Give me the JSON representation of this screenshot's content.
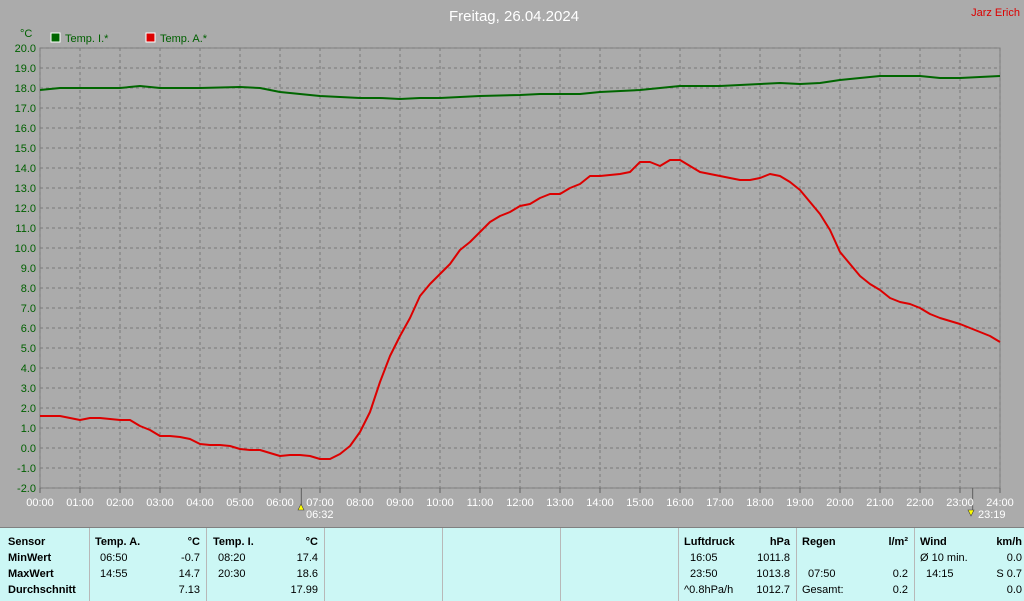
{
  "title": "Freitag, 26.04.2024",
  "author": "Jarz Erich",
  "unit_label": "°C",
  "legend": [
    {
      "label": "Temp. I.*",
      "color": "#006600"
    },
    {
      "label": "Temp. A.*",
      "color": "#dd0000"
    }
  ],
  "sun": {
    "rise": "06:32",
    "set": "23:19"
  },
  "chart_data": {
    "type": "line",
    "title": "Freitag, 26.04.2024",
    "ylabel": "°C",
    "xlabel": "",
    "ylim": [
      -2.0,
      20.0
    ],
    "xlim": [
      0,
      24
    ],
    "grid": true,
    "legend_position": "top-left",
    "x_ticks": [
      "00:00",
      "01:00",
      "02:00",
      "03:00",
      "04:00",
      "05:00",
      "06:00",
      "07:00",
      "08:00",
      "09:00",
      "10:00",
      "11:00",
      "12:00",
      "13:00",
      "14:00",
      "15:00",
      "16:00",
      "17:00",
      "18:00",
      "19:00",
      "20:00",
      "21:00",
      "22:00",
      "23:00",
      "24:00"
    ],
    "y_ticks": [
      "-2.0",
      "-1.0",
      "0.0",
      "1.0",
      "2.0",
      "3.0",
      "4.0",
      "5.0",
      "6.0",
      "7.0",
      "8.0",
      "9.0",
      "10.0",
      "11.0",
      "12.0",
      "13.0",
      "14.0",
      "15.0",
      "16.0",
      "17.0",
      "18.0",
      "19.0",
      "20.0"
    ],
    "series": [
      {
        "name": "Temp. I.*",
        "color": "#006600",
        "points": [
          [
            0,
            17.9
          ],
          [
            0.5,
            18.0
          ],
          [
            1,
            18.0
          ],
          [
            2,
            18.0
          ],
          [
            2.5,
            18.1
          ],
          [
            3,
            18.0
          ],
          [
            4,
            18.0
          ],
          [
            5,
            18.05
          ],
          [
            5.5,
            18.0
          ],
          [
            6,
            17.8
          ],
          [
            6.5,
            17.7
          ],
          [
            7,
            17.6
          ],
          [
            7.5,
            17.55
          ],
          [
            8,
            17.5
          ],
          [
            8.5,
            17.5
          ],
          [
            9,
            17.45
          ],
          [
            9.5,
            17.5
          ],
          [
            10,
            17.5
          ],
          [
            10.5,
            17.55
          ],
          [
            11,
            17.6
          ],
          [
            12,
            17.65
          ],
          [
            12.5,
            17.7
          ],
          [
            13,
            17.7
          ],
          [
            13.5,
            17.7
          ],
          [
            14,
            17.8
          ],
          [
            15,
            17.9
          ],
          [
            15.5,
            18.0
          ],
          [
            16,
            18.1
          ],
          [
            17,
            18.1
          ],
          [
            17.5,
            18.15
          ],
          [
            18,
            18.2
          ],
          [
            18.5,
            18.25
          ],
          [
            19,
            18.2
          ],
          [
            19.5,
            18.25
          ],
          [
            20,
            18.4
          ],
          [
            20.5,
            18.5
          ],
          [
            21,
            18.6
          ],
          [
            22,
            18.6
          ],
          [
            22.5,
            18.5
          ],
          [
            23,
            18.5
          ],
          [
            23.5,
            18.55
          ],
          [
            24,
            18.6
          ]
        ]
      },
      {
        "name": "Temp. A.*",
        "color": "#dd0000",
        "points": [
          [
            0,
            1.6
          ],
          [
            0.5,
            1.6
          ],
          [
            0.75,
            1.5
          ],
          [
            1,
            1.4
          ],
          [
            1.25,
            1.5
          ],
          [
            1.5,
            1.5
          ],
          [
            2,
            1.4
          ],
          [
            2.25,
            1.4
          ],
          [
            2.5,
            1.1
          ],
          [
            2.75,
            0.9
          ],
          [
            3,
            0.6
          ],
          [
            3.25,
            0.6
          ],
          [
            3.5,
            0.55
          ],
          [
            3.75,
            0.45
          ],
          [
            4,
            0.2
          ],
          [
            4.25,
            0.15
          ],
          [
            4.5,
            0.15
          ],
          [
            4.75,
            0.1
          ],
          [
            5,
            -0.05
          ],
          [
            5.25,
            -0.1
          ],
          [
            5.5,
            -0.1
          ],
          [
            5.75,
            -0.25
          ],
          [
            6,
            -0.4
          ],
          [
            6.25,
            -0.35
          ],
          [
            6.5,
            -0.35
          ],
          [
            6.75,
            -0.4
          ],
          [
            7,
            -0.55
          ],
          [
            7.25,
            -0.55
          ],
          [
            7.5,
            -0.3
          ],
          [
            7.75,
            0.1
          ],
          [
            8,
            0.8
          ],
          [
            8.25,
            1.8
          ],
          [
            8.5,
            3.3
          ],
          [
            8.75,
            4.6
          ],
          [
            9,
            5.6
          ],
          [
            9.25,
            6.5
          ],
          [
            9.5,
            7.6
          ],
          [
            9.75,
            8.2
          ],
          [
            10,
            8.7
          ],
          [
            10.25,
            9.2
          ],
          [
            10.5,
            9.9
          ],
          [
            10.75,
            10.3
          ],
          [
            11,
            10.8
          ],
          [
            11.25,
            11.3
          ],
          [
            11.5,
            11.6
          ],
          [
            11.75,
            11.8
          ],
          [
            12,
            12.1
          ],
          [
            12.25,
            12.2
          ],
          [
            12.5,
            12.5
          ],
          [
            12.75,
            12.7
          ],
          [
            13,
            12.7
          ],
          [
            13.25,
            13.0
          ],
          [
            13.5,
            13.2
          ],
          [
            13.75,
            13.6
          ],
          [
            14,
            13.6
          ],
          [
            14.5,
            13.7
          ],
          [
            14.75,
            13.8
          ],
          [
            15,
            14.3
          ],
          [
            15.25,
            14.3
          ],
          [
            15.5,
            14.1
          ],
          [
            15.75,
            14.4
          ],
          [
            16,
            14.4
          ],
          [
            16.25,
            14.1
          ],
          [
            16.5,
            13.8
          ],
          [
            16.75,
            13.7
          ],
          [
            17,
            13.6
          ],
          [
            17.25,
            13.5
          ],
          [
            17.5,
            13.4
          ],
          [
            17.75,
            13.4
          ],
          [
            18,
            13.5
          ],
          [
            18.25,
            13.7
          ],
          [
            18.5,
            13.6
          ],
          [
            18.75,
            13.3
          ],
          [
            19,
            12.9
          ],
          [
            19.25,
            12.3
          ],
          [
            19.5,
            11.7
          ],
          [
            19.75,
            10.9
          ],
          [
            20,
            9.8
          ],
          [
            20.25,
            9.2
          ],
          [
            20.5,
            8.6
          ],
          [
            20.75,
            8.2
          ],
          [
            21,
            7.9
          ],
          [
            21.25,
            7.5
          ],
          [
            21.5,
            7.3
          ],
          [
            21.75,
            7.2
          ],
          [
            22,
            7.0
          ],
          [
            22.25,
            6.7
          ],
          [
            22.5,
            6.5
          ],
          [
            22.75,
            6.35
          ],
          [
            23,
            6.2
          ],
          [
            23.25,
            6.0
          ],
          [
            23.5,
            5.8
          ],
          [
            23.75,
            5.6
          ],
          [
            24,
            5.3
          ]
        ]
      }
    ]
  },
  "stats": {
    "row_labels": [
      "Sensor",
      "MinWert",
      "MaxWert",
      "Durchschnitt"
    ],
    "temp_a": {
      "header": "Temp. A.",
      "unit": "°C",
      "min_time": "06:50",
      "min": "-0.7",
      "max_time": "14:55",
      "max": "14.7",
      "avg": "7.13"
    },
    "temp_i": {
      "header": "Temp. I.",
      "unit": "°C",
      "min_time": "08:20",
      "min": "17.4",
      "max_time": "20:30",
      "max": "18.6",
      "avg": "17.99"
    },
    "pressure": {
      "header": "Luftdruck",
      "unit": "hPa",
      "t1": "16:05",
      "v1": "1011.8",
      "t2": "23:50",
      "v2": "1013.8",
      "t3": "^0.8hPa/h",
      "v3": "1012.7"
    },
    "rain": {
      "header": "Regen",
      "unit": "l/m²",
      "t2": "07:50",
      "v2": "0.2",
      "t3": "Gesamt:",
      "v3": "0.2"
    },
    "wind": {
      "header": "Wind",
      "unit": "km/h",
      "t1": "Ø 10 min.",
      "v1": "0.0",
      "t2": "14:15",
      "v2": "S 0.7",
      "v3": "0.0"
    }
  }
}
